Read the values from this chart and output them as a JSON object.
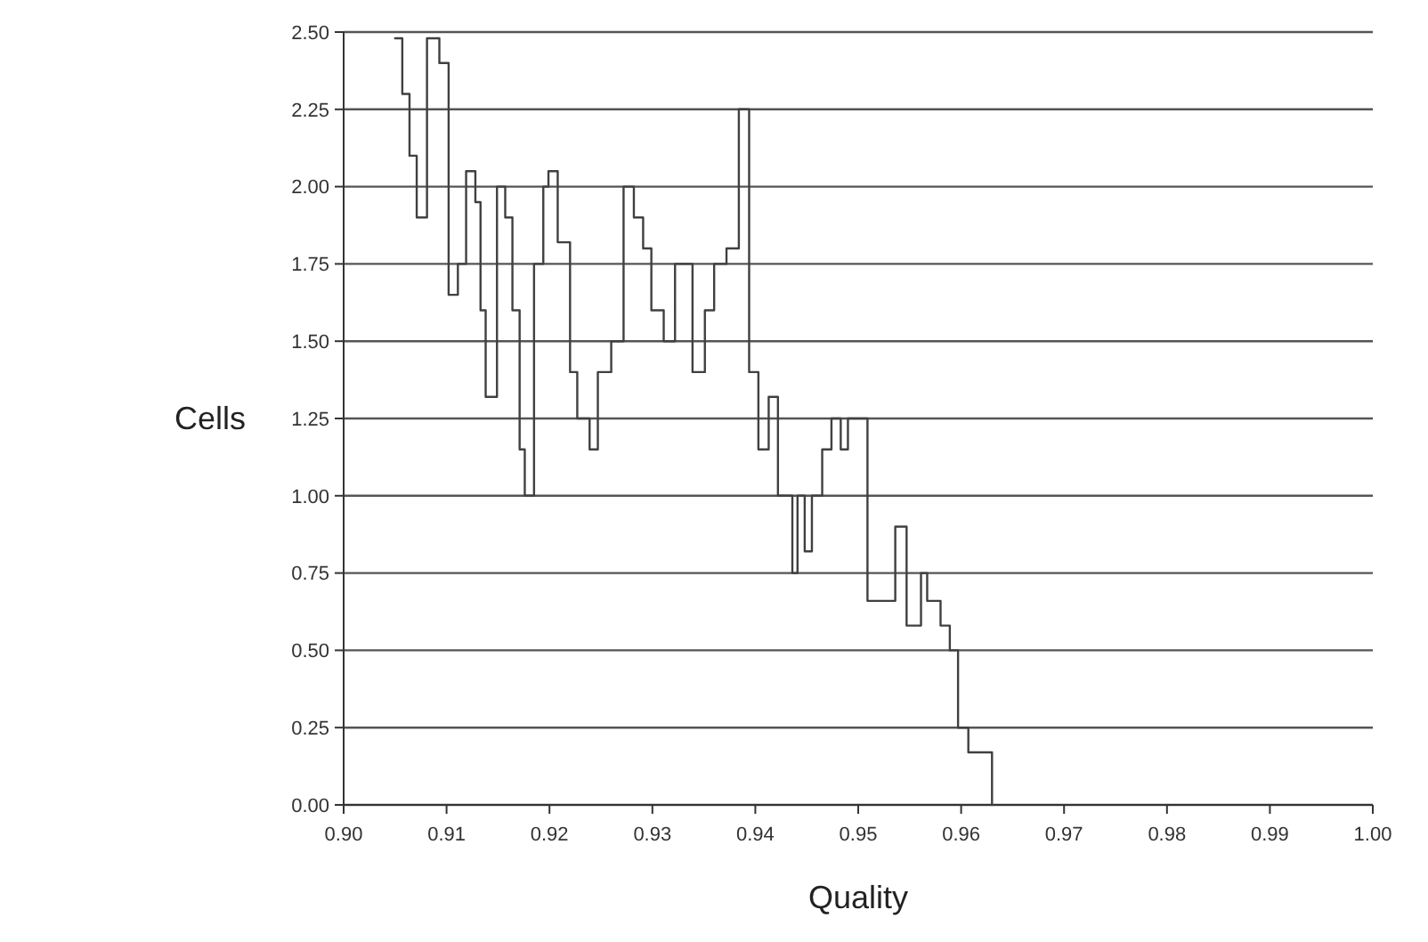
{
  "chart_data": {
    "type": "step",
    "xlabel": "Quality",
    "ylabel": "Cells",
    "grid": "y",
    "color": "#404040",
    "x": [
      0.905,
      0.9057,
      0.9064,
      0.9071,
      0.9081,
      0.9093,
      0.9102,
      0.9111,
      0.9119,
      0.9128,
      0.9133,
      0.9138,
      0.9149,
      0.9157,
      0.9164,
      0.9171,
      0.9176,
      0.9185,
      0.9194,
      0.9199,
      0.9208,
      0.922,
      0.9227,
      0.9239,
      0.9247,
      0.926,
      0.9272,
      0.9282,
      0.9291,
      0.9299,
      0.9311,
      0.9322,
      0.9339,
      0.9351,
      0.936,
      0.9372,
      0.9384,
      0.9394,
      0.9403,
      0.9413,
      0.9422,
      0.9436,
      0.9441,
      0.9448,
      0.9455,
      0.9465,
      0.9474,
      0.9483,
      0.949,
      0.9509,
      0.9536,
      0.9547,
      0.9561,
      0.9567,
      0.958,
      0.9589,
      0.9597,
      0.9607,
      0.963
    ],
    "values": [
      2.48,
      2.3,
      2.1,
      1.9,
      2.48,
      2.4,
      1.65,
      1.75,
      2.05,
      1.95,
      1.6,
      1.32,
      2.0,
      1.9,
      1.6,
      1.15,
      1.0,
      1.75,
      2.0,
      2.05,
      1.82,
      1.4,
      1.25,
      1.15,
      1.4,
      1.5,
      2.0,
      1.9,
      1.8,
      1.6,
      1.5,
      1.75,
      1.4,
      1.6,
      1.75,
      1.8,
      2.25,
      1.4,
      1.15,
      1.32,
      1.0,
      0.75,
      1.0,
      0.82,
      1.0,
      1.15,
      1.25,
      1.15,
      1.25,
      0.66,
      0.9,
      0.58,
      0.75,
      0.66,
      0.58,
      0.5,
      0.25,
      0.17,
      0
    ],
    "xlim": [
      0.9,
      1.0
    ],
    "xticks": [
      {
        "value": 0.9,
        "label": "0.90"
      },
      {
        "value": 0.91,
        "label": "0.91"
      },
      {
        "value": 0.92,
        "label": "0.92"
      },
      {
        "value": 0.93,
        "label": "0.93"
      },
      {
        "value": 0.94,
        "label": "0.94"
      },
      {
        "value": 0.95,
        "label": "0.95"
      },
      {
        "value": 0.96,
        "label": "0.96"
      },
      {
        "value": 0.97,
        "label": "0.97"
      },
      {
        "value": 0.98,
        "label": "0.98"
      },
      {
        "value": 0.99,
        "label": "0.99"
      },
      {
        "value": 1.0,
        "label": "1.00"
      }
    ],
    "ylim": [
      0,
      2.5
    ],
    "yticks": [
      {
        "value": 0,
        "label": "0.00"
      },
      {
        "value": 0.25,
        "label": "0.25"
      },
      {
        "value": 0.5,
        "label": "0.50"
      },
      {
        "value": 0.75,
        "label": "0.75"
      },
      {
        "value": 1.0,
        "label": "1.00"
      },
      {
        "value": 1.25,
        "label": "1.25"
      },
      {
        "value": 1.5,
        "label": "1.50"
      },
      {
        "value": 1.75,
        "label": "1.75"
      },
      {
        "value": 2.0,
        "label": "2.00"
      },
      {
        "value": 2.25,
        "label": "2.25"
      },
      {
        "value": 2.5,
        "label": "2.50"
      }
    ],
    "line_style": "solid",
    "marker": "none"
  }
}
